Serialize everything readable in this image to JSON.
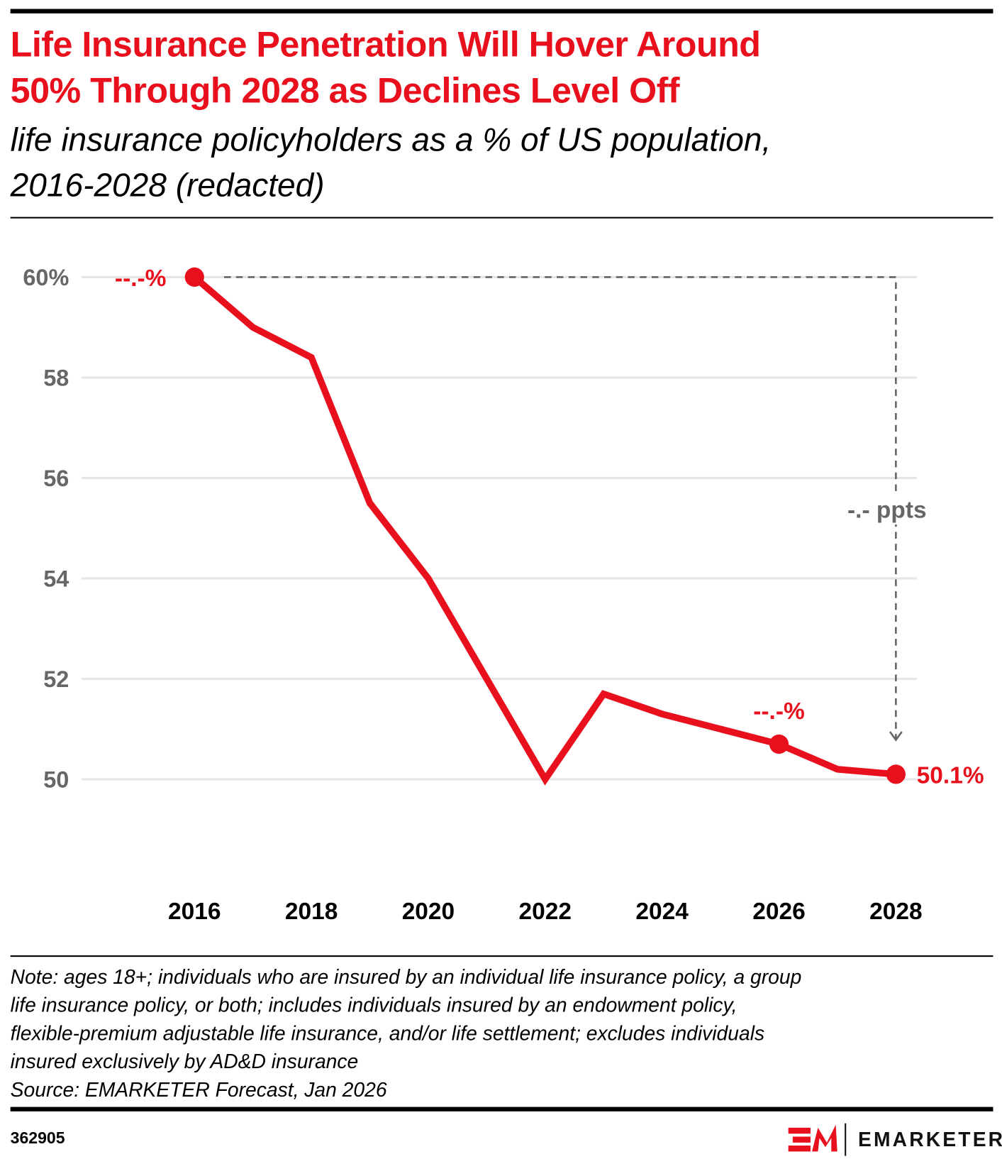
{
  "header": {
    "title_lines": [
      "Life Insurance Penetration Will Hover Around",
      "50% Through 2028 as Declines Level Off"
    ],
    "subtitle_lines": [
      "life insurance policyholders as a % of US population,",
      "2016-2028 (redacted)"
    ]
  },
  "chart_data": {
    "type": "line",
    "x": [
      2016,
      2017,
      2018,
      2019,
      2020,
      2021,
      2022,
      2023,
      2024,
      2025,
      2026,
      2027,
      2028
    ],
    "values": [
      60.0,
      59.0,
      58.4,
      55.5,
      54.0,
      52.0,
      50.0,
      51.7,
      51.3,
      51.0,
      50.7,
      50.2,
      50.1
    ],
    "ylim": [
      50,
      60
    ],
    "y_ticks": [
      {
        "v": 60,
        "label": "60%"
      },
      {
        "v": 58,
        "label": "58"
      },
      {
        "v": 56,
        "label": "56"
      },
      {
        "v": 54,
        "label": "54"
      },
      {
        "v": 52,
        "label": "52"
      },
      {
        "v": 50,
        "label": "50"
      }
    ],
    "x_ticks": [
      "2016",
      "2018",
      "2020",
      "2022",
      "2024",
      "2026",
      "2028"
    ],
    "grid": true,
    "line_color": "#e8101c",
    "highlighted_points": [
      {
        "x": 2016,
        "label": "--.-%"
      },
      {
        "x": 2026,
        "label": "--.-%"
      },
      {
        "x": 2028,
        "label": "50.1%"
      }
    ],
    "annotation": "-.- ppts"
  },
  "footer": {
    "note_lines": [
      "Note: ages 18+; individuals who are insured by an individual life insurance policy, a group",
      "life insurance policy, or both; includes individuals insured by an endowment policy,",
      "flexible-premium adjustable life insurance, and/or life settlement; excludes individuals",
      "insured exclusively by AD&D insurance",
      "Source: EMARKETER Forecast, Jan 2026"
    ],
    "chart_id": "362905",
    "brand": "EMARKETER"
  },
  "colors": {
    "accent": "#e8101c",
    "axis_text": "#666666",
    "grid": "#e5e5e5"
  }
}
